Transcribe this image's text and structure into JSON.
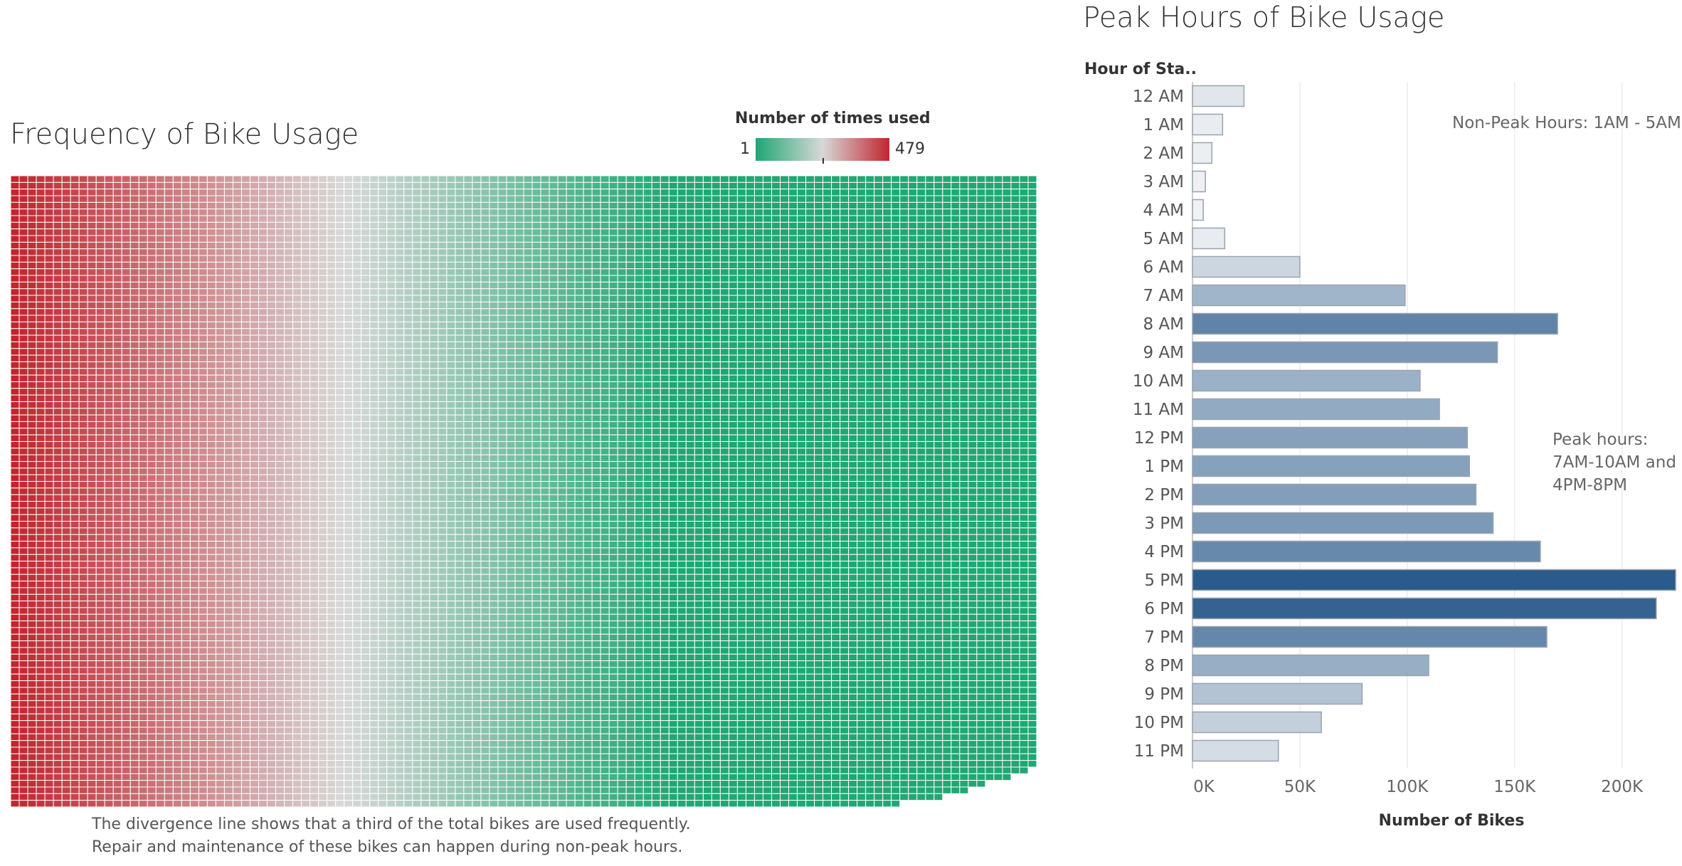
{
  "heatmap": {
    "title": "Frequency of Bike Usage",
    "legend_title": "Number of times used",
    "legend_min": "1",
    "legend_max": "479",
    "note_line1": "The divergence line shows that a third of the total bikes are used frequently.",
    "note_line2": "Repair and maintenance of these bikes can happen during non-peak hours.",
    "colors": {
      "low": "#1fa774",
      "mid": "#d8d8d8",
      "high": "#c0262f"
    }
  },
  "barchart": {
    "title": "Peak Hours of Bike Usage",
    "y_header": "Hour of Sta..",
    "xlabel": "Number of Bikes",
    "annotation_nonpeak": "Non-Peak Hours: 1AM - 5AM",
    "annotation_peak_1": "Peak hours:",
    "annotation_peak_2": "7AM-10AM and",
    "annotation_peak_3": "4PM-8PM"
  },
  "chart_data": [
    {
      "type": "heatmap",
      "title": "Frequency of Bike Usage",
      "legend_title": "Number of times used",
      "value_range": [
        1,
        479
      ]
    },
    {
      "type": "bar",
      "orientation": "horizontal",
      "title": "Peak Hours of Bike Usage",
      "xlabel": "Number of Bikes",
      "ylabel": "Hour of Sta..",
      "categories": [
        "12 AM",
        "1 AM",
        "2 AM",
        "3 AM",
        "4 AM",
        "5 AM",
        "6 AM",
        "7 AM",
        "8 AM",
        "9 AM",
        "10 AM",
        "11 AM",
        "12 PM",
        "1 PM",
        "2 PM",
        "3 PM",
        "4 PM",
        "5 PM",
        "6 PM",
        "7 PM",
        "8 PM",
        "9 PM",
        "10 PM",
        "11 PM"
      ],
      "values": [
        24000,
        14000,
        9000,
        6000,
        5000,
        15000,
        50000,
        99000,
        170000,
        142000,
        106000,
        115000,
        128000,
        129000,
        132000,
        140000,
        162000,
        225000,
        216000,
        165000,
        110000,
        79000,
        60000,
        40000
      ],
      "xlim": [
        0,
        222000
      ],
      "ticks": [
        0,
        50000,
        100000,
        150000,
        200000
      ],
      "tick_labels": [
        "0K",
        "50K",
        "100K",
        "150K",
        "200K"
      ],
      "grid": true,
      "colors": {
        "light": "#f2f3f5",
        "dark": "#2b5b8c"
      }
    }
  ]
}
